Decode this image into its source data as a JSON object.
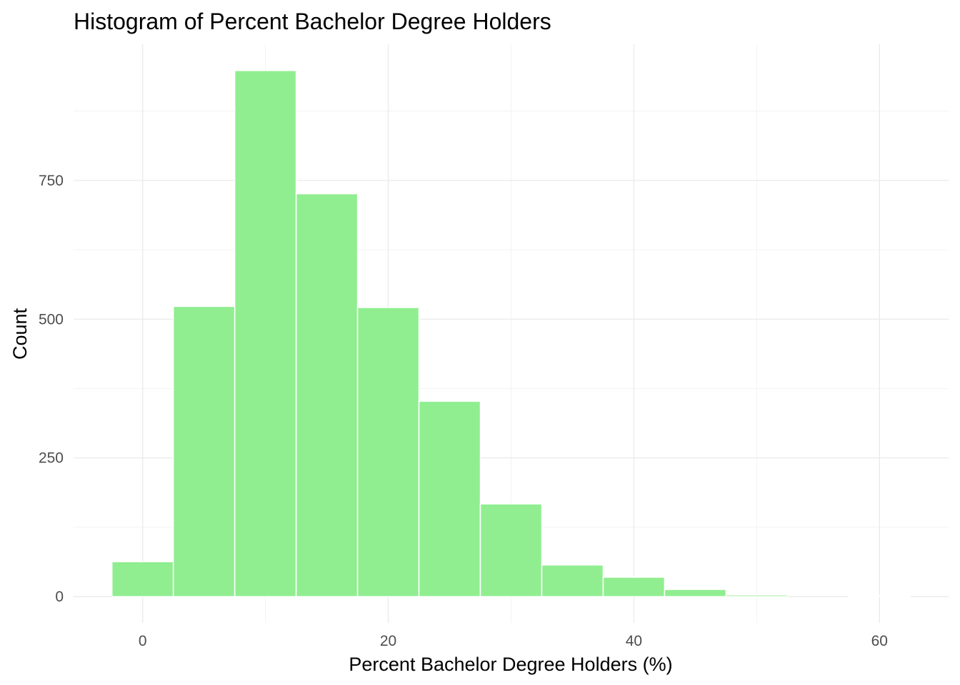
{
  "chart_data": {
    "type": "bar",
    "title": "Histogram of Percent Bachelor Degree Holders",
    "xlabel": "Percent Bachelor Degree Holders (%)",
    "ylabel": "Count",
    "bin_width": 5,
    "bins": [
      {
        "x_start": -2.5,
        "x_end": 2.5,
        "count": 63
      },
      {
        "x_start": 2.5,
        "x_end": 7.5,
        "count": 523
      },
      {
        "x_start": 7.5,
        "x_end": 12.5,
        "count": 948
      },
      {
        "x_start": 12.5,
        "x_end": 17.5,
        "count": 726
      },
      {
        "x_start": 17.5,
        "x_end": 22.5,
        "count": 521
      },
      {
        "x_start": 22.5,
        "x_end": 27.5,
        "count": 352
      },
      {
        "x_start": 27.5,
        "x_end": 32.5,
        "count": 167
      },
      {
        "x_start": 32.5,
        "x_end": 37.5,
        "count": 57
      },
      {
        "x_start": 37.5,
        "x_end": 42.5,
        "count": 35
      },
      {
        "x_start": 42.5,
        "x_end": 47.5,
        "count": 13
      },
      {
        "x_start": 47.5,
        "x_end": 52.5,
        "count": 3
      },
      {
        "x_start": 52.5,
        "x_end": 57.5,
        "count": 0
      },
      {
        "x_start": 57.5,
        "x_end": 62.5,
        "count": 1
      }
    ],
    "xlim": [
      -5.625,
      65.625
    ],
    "ylim": [
      -47.4,
      995.4
    ],
    "x_ticks": [
      0,
      20,
      40,
      60
    ],
    "x_minor_ticks": [
      10,
      30,
      50
    ],
    "y_ticks": [
      0,
      250,
      500,
      750
    ],
    "y_minor_ticks": [
      125,
      375,
      625,
      875
    ],
    "grid": true,
    "legend": "none",
    "colors": {
      "bar_fill": "#90EE90",
      "bar_outline": "#FFFFFF",
      "grid_major": "#EBEBEB",
      "grid_minor": "#F2F2F2",
      "tick_text": "#4D4D4D"
    }
  }
}
